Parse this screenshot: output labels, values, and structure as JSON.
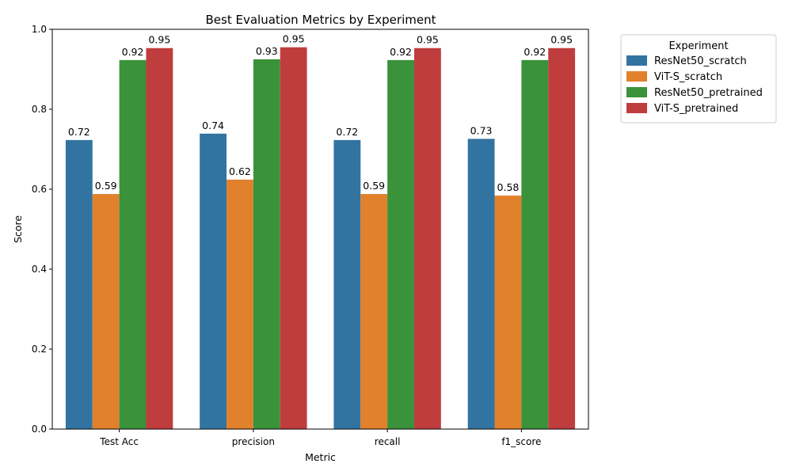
{
  "chart_data": {
    "type": "bar",
    "title": "Best Evaluation Metrics by Experiment",
    "xlabel": "Metric",
    "ylabel": "Score",
    "ylim": [
      0,
      1.0
    ],
    "yticks": [
      "0.0",
      "0.2",
      "0.4",
      "0.6",
      "0.8",
      "1.0"
    ],
    "categories": [
      "Test Acc",
      "precision",
      "recall",
      "f1_score"
    ],
    "legend": {
      "title": "Experiment",
      "placement": "outside-top-right"
    },
    "series": [
      {
        "name": "ResNet50_scratch",
        "color": "#3274a1",
        "values": [
          0.723,
          0.739,
          0.723,
          0.726
        ],
        "labels": [
          "0.72",
          "0.74",
          "0.72",
          "0.73"
        ]
      },
      {
        "name": "ViT-S_scratch",
        "color": "#e1812c",
        "values": [
          0.588,
          0.624,
          0.588,
          0.584
        ],
        "labels": [
          "0.59",
          "0.62",
          "0.59",
          "0.58"
        ]
      },
      {
        "name": "ResNet50_pretrained",
        "color": "#3a923a",
        "values": [
          0.923,
          0.925,
          0.923,
          0.923
        ],
        "labels": [
          "0.92",
          "0.93",
          "0.92",
          "0.92"
        ]
      },
      {
        "name": "ViT-S_pretrained",
        "color": "#c03d3e",
        "values": [
          0.953,
          0.955,
          0.953,
          0.953
        ],
        "labels": [
          "0.95",
          "0.95",
          "0.95",
          "0.95"
        ]
      }
    ]
  }
}
